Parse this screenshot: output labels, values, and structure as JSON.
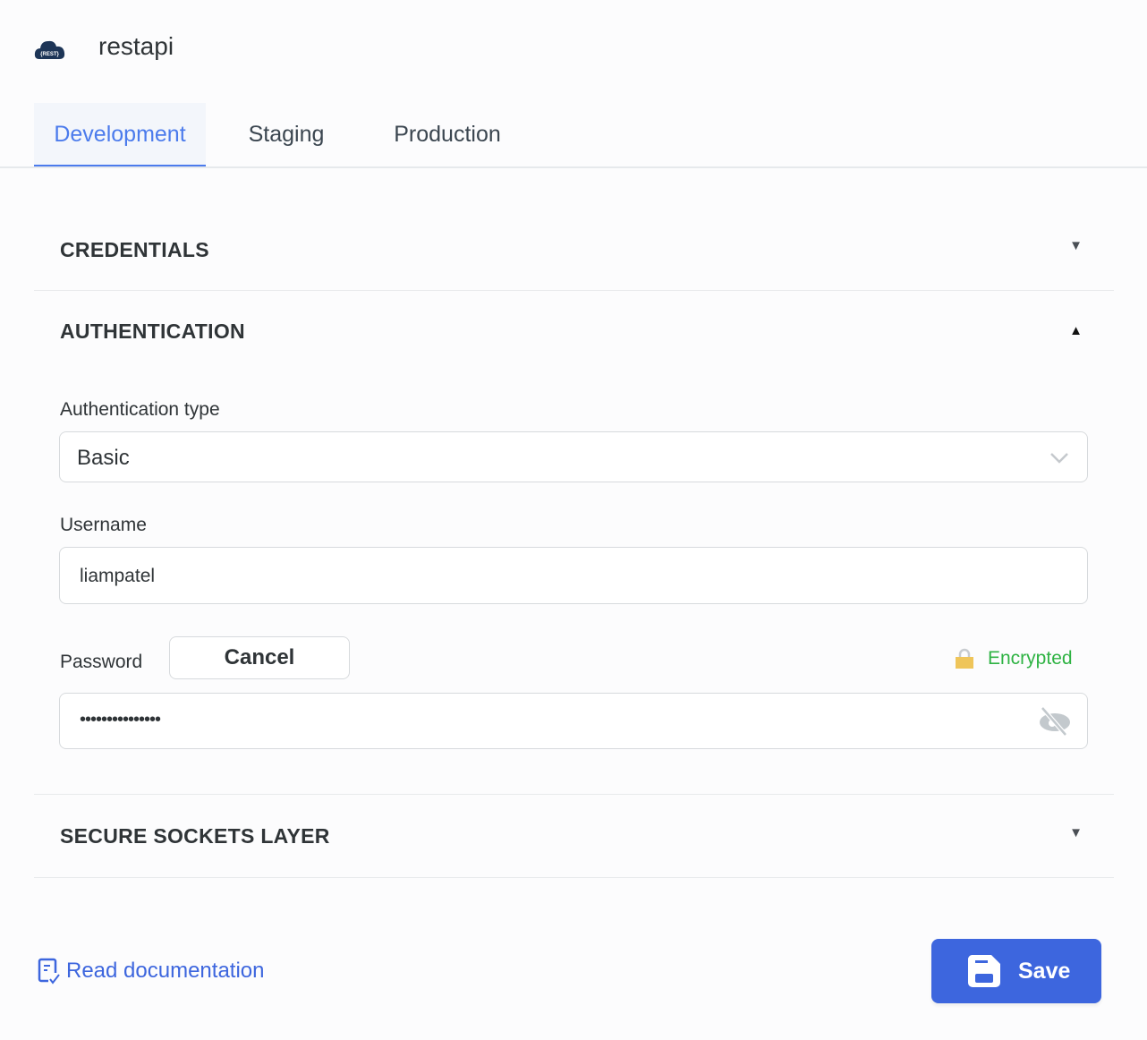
{
  "header": {
    "title": "restapi",
    "logo_text": "{REST}",
    "logo_icon": "rest-cloud-icon"
  },
  "tabs": [
    {
      "label": "Development",
      "active": true
    },
    {
      "label": "Staging"
    },
    {
      "label": "Production"
    }
  ],
  "sections": {
    "credentials": {
      "title": "CREDENTIALS",
      "expanded": false
    },
    "authentication": {
      "title": "AUTHENTICATION",
      "expanded": true
    },
    "ssl": {
      "title": "SECURE SOCKETS LAYER",
      "expanded": false
    }
  },
  "auth": {
    "type_label": "Authentication type",
    "type_value": "Basic",
    "username_label": "Username",
    "username_value": "liampatel",
    "password_label": "Password",
    "cancel_label": "Cancel",
    "encrypted_label": "Encrypted",
    "password_value": "•••••••••••••••"
  },
  "footer": {
    "docs_label": "Read documentation",
    "save_label": "Save"
  },
  "colors": {
    "accent": "#3d66de",
    "encrypted": "#2fb344"
  }
}
